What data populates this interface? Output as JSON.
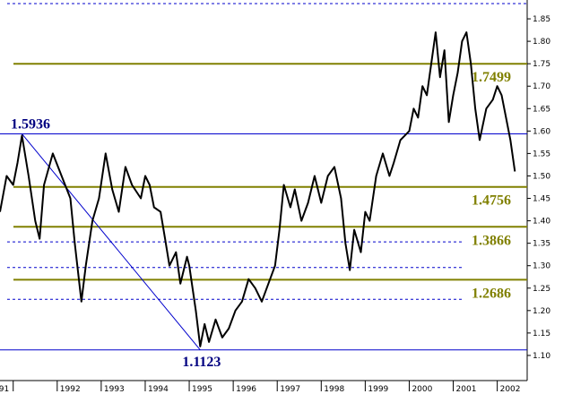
{
  "chart_data": {
    "type": "line",
    "xlim": [
      1990.7,
      2002.68
    ],
    "ylim": [
      1.044,
      1.892
    ],
    "xticks": [
      {
        "value": 1991,
        "label": "91"
      },
      1992,
      1993,
      1994,
      1995,
      1996,
      1997,
      1998,
      1999,
      2000,
      2001,
      2002
    ],
    "yticks": [
      {
        "value": 1.1,
        "label": "1.10"
      },
      1.15,
      {
        "value": 1.2,
        "label": "1.20"
      },
      1.25,
      {
        "value": 1.3,
        "label": "1.30"
      },
      1.35,
      {
        "value": 1.4,
        "label": "1.40"
      },
      1.45,
      {
        "value": 1.5,
        "label": "1.50"
      },
      1.55,
      {
        "value": 1.6,
        "label": "1.60"
      },
      1.65,
      {
        "value": 1.7,
        "label": "1.70"
      },
      1.75,
      {
        "value": 1.8,
        "label": "1.80"
      },
      1.85
    ],
    "x": [
      1990.7,
      1990.85,
      1991.0,
      1991.1,
      1991.2,
      1991.35,
      1991.5,
      1991.6,
      1991.7,
      1991.9,
      1992.1,
      1992.3,
      1992.4,
      1992.55,
      1992.65,
      1992.8,
      1992.95,
      1993.1,
      1993.25,
      1993.4,
      1993.55,
      1993.7,
      1993.9,
      1994.0,
      1994.1,
      1994.2,
      1994.35,
      1994.45,
      1994.55,
      1994.7,
      1994.8,
      1994.95,
      1995.0,
      1995.15,
      1995.25,
      1995.35,
      1995.45,
      1995.6,
      1995.75,
      1995.9,
      1996.05,
      1996.2,
      1996.35,
      1996.5,
      1996.65,
      1996.8,
      1996.95,
      1997.05,
      1997.15,
      1997.3,
      1997.4,
      1997.55,
      1997.7,
      1997.85,
      1998.0,
      1998.15,
      1998.3,
      1998.45,
      1998.55,
      1998.65,
      1998.75,
      1998.9,
      1999.0,
      1999.1,
      1999.25,
      1999.4,
      1999.55,
      1999.65,
      1999.8,
      2000.0,
      2000.1,
      2000.2,
      2000.3,
      2000.4,
      2000.5,
      2000.6,
      2000.7,
      2000.8,
      2000.9,
      2001.0,
      2001.1,
      2001.2,
      2001.3,
      2001.4,
      2001.5,
      2001.6,
      2001.75,
      2001.9,
      2002.0,
      2002.1,
      2002.2,
      2002.3,
      2002.4
    ],
    "series": [
      {
        "color": "#000000",
        "values": [
          1.42,
          1.5,
          1.48,
          1.53,
          1.59,
          1.5,
          1.4,
          1.36,
          1.48,
          1.55,
          1.5,
          1.45,
          1.35,
          1.22,
          1.3,
          1.4,
          1.45,
          1.55,
          1.47,
          1.42,
          1.52,
          1.48,
          1.45,
          1.5,
          1.48,
          1.43,
          1.42,
          1.36,
          1.3,
          1.33,
          1.26,
          1.32,
          1.3,
          1.2,
          1.12,
          1.17,
          1.13,
          1.18,
          1.14,
          1.16,
          1.2,
          1.22,
          1.27,
          1.25,
          1.22,
          1.26,
          1.3,
          1.38,
          1.48,
          1.43,
          1.47,
          1.4,
          1.44,
          1.5,
          1.44,
          1.5,
          1.52,
          1.45,
          1.35,
          1.29,
          1.38,
          1.33,
          1.42,
          1.4,
          1.5,
          1.55,
          1.5,
          1.53,
          1.58,
          1.6,
          1.65,
          1.63,
          1.7,
          1.68,
          1.75,
          1.82,
          1.72,
          1.78,
          1.62,
          1.68,
          1.73,
          1.8,
          1.82,
          1.75,
          1.65,
          1.58,
          1.65,
          1.67,
          1.7,
          1.68,
          1.63,
          1.58,
          1.51
        ]
      }
    ],
    "levels": [
      {
        "value": 1.7499,
        "color": "#808000"
      },
      {
        "value": 1.5936,
        "color": "#0000cc"
      },
      {
        "value": 1.4756,
        "color": "#808000"
      },
      {
        "value": 1.3866,
        "color": "#808000"
      },
      {
        "value": 1.2686,
        "color": "#808000"
      },
      {
        "value": 1.1123,
        "color": "#0000cc"
      }
    ],
    "dashed_levels": [
      1.884,
      1.353,
      1.296,
      1.225
    ],
    "trend_x": [
      1991.2,
      1995.25
    ]
  }
}
